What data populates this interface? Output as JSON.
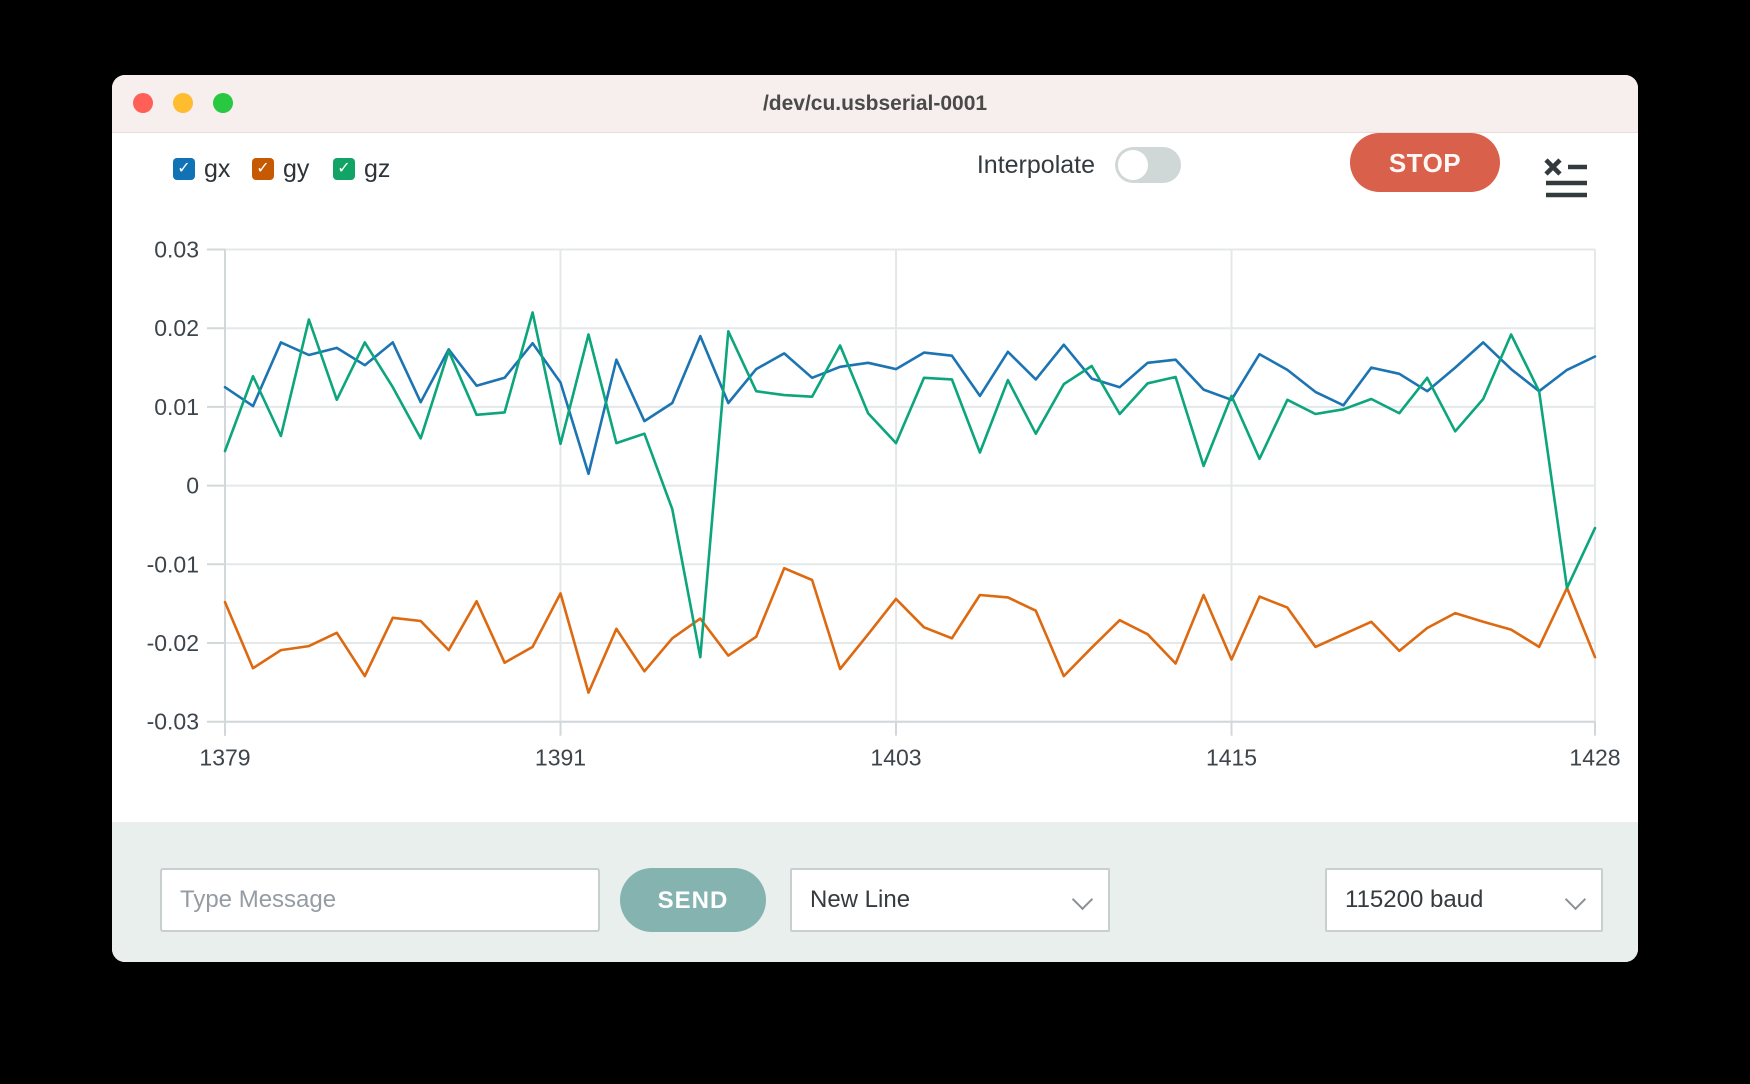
{
  "window": {
    "title": "/dev/cu.usbserial-0001",
    "traffic_lights": [
      "close",
      "minimize",
      "maximize"
    ]
  },
  "legend": {
    "check_glyph": "✓",
    "items": [
      {
        "label": "gx",
        "color": "#1272b6",
        "checked": true
      },
      {
        "label": "gy",
        "color": "#c65a02",
        "checked": true
      },
      {
        "label": "gz",
        "color": "#12a366",
        "checked": true
      }
    ]
  },
  "toolbar": {
    "interpolate_label": "Interpolate",
    "interpolate_on": false,
    "stop_label": "STOP",
    "log_icon": "list-with-x-icon"
  },
  "chart_data": {
    "type": "line",
    "xlim": [
      1379,
      1428
    ],
    "ylim": [
      -0.03,
      0.03
    ],
    "x_ticks": [
      "1379",
      "1391",
      "1403",
      "1415",
      "1428"
    ],
    "y_ticks": [
      "0.03",
      "0.02",
      "0.01",
      "0",
      "-0.01",
      "-0.02",
      "-0.03"
    ],
    "grid": true,
    "legend_position": "top-left-checkboxes",
    "series": [
      {
        "name": "gx",
        "color": "#1c74b3",
        "values": [
          0.0125,
          0.0101,
          0.0182,
          0.0166,
          0.0175,
          0.0153,
          0.0182,
          0.0106,
          0.0173,
          0.0127,
          0.0137,
          0.0181,
          0.0131,
          0.0015,
          0.016,
          0.0082,
          0.0105,
          0.019,
          0.0105,
          0.0148,
          0.0168,
          0.0137,
          0.0151,
          0.0156,
          0.0148,
          0.0169,
          0.0165,
          0.0114,
          0.017,
          0.0135,
          0.0179,
          0.0136,
          0.0125,
          0.0156,
          0.016,
          0.0122,
          0.0109,
          0.0167,
          0.0147,
          0.0119,
          0.0102,
          0.015,
          0.0142,
          0.012,
          0.015,
          0.0182,
          0.0148,
          0.012,
          0.0147,
          0.0164
        ]
      },
      {
        "name": "gy",
        "color": "#dd6910",
        "values": [
          -0.0148,
          -0.0232,
          -0.0209,
          -0.0204,
          -0.0187,
          -0.0242,
          -0.0168,
          -0.0172,
          -0.0209,
          -0.0147,
          -0.0225,
          -0.0205,
          -0.0137,
          -0.0263,
          -0.0182,
          -0.0236,
          -0.0194,
          -0.0169,
          -0.0216,
          -0.0192,
          -0.0105,
          -0.012,
          -0.0233,
          -0.0189,
          -0.0144,
          -0.018,
          -0.0194,
          -0.0139,
          -0.0142,
          -0.0159,
          -0.0242,
          -0.0206,
          -0.0171,
          -0.0189,
          -0.0226,
          -0.0139,
          -0.0221,
          -0.0141,
          -0.0155,
          -0.0205,
          -0.0189,
          -0.0173,
          -0.021,
          -0.0181,
          -0.0162,
          -0.0173,
          -0.0183,
          -0.0205,
          -0.013,
          -0.0218
        ]
      },
      {
        "name": "gz",
        "color": "#0ca57c",
        "values": [
          0.0044,
          0.0139,
          0.0063,
          0.0211,
          0.0109,
          0.0182,
          0.0125,
          0.006,
          0.0171,
          0.009,
          0.0093,
          0.022,
          0.0053,
          0.0192,
          0.0054,
          0.0066,
          -0.003,
          -0.0218,
          0.0196,
          0.012,
          0.0115,
          0.0113,
          0.0178,
          0.0092,
          0.0054,
          0.0137,
          0.0135,
          0.0042,
          0.0134,
          0.0066,
          0.0129,
          0.0152,
          0.0091,
          0.013,
          0.0138,
          0.0025,
          0.0114,
          0.0034,
          0.0109,
          0.0091,
          0.0097,
          0.011,
          0.0092,
          0.0137,
          0.0069,
          0.011,
          0.0192,
          0.012,
          -0.013,
          -0.0054
        ]
      }
    ]
  },
  "footer": {
    "message_placeholder": "Type Message",
    "send_label": "SEND",
    "line_ending_value": "New Line",
    "baud_value": "115200 baud"
  },
  "colors": {
    "titlebar_bg": "#f7efed",
    "stop_button": "#d9604b",
    "send_button": "#85b3b0",
    "footer_bg": "#e9efec",
    "grid": "#e4e8e9",
    "axis": "#d2d7d9",
    "tick_text": "#3d444b"
  }
}
